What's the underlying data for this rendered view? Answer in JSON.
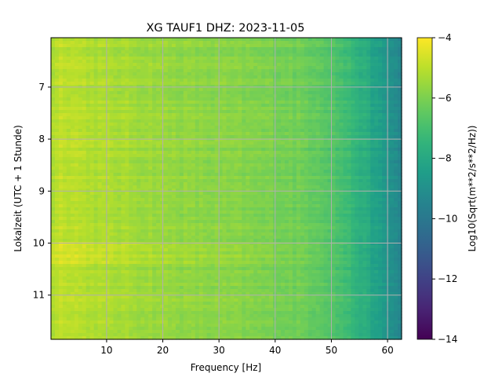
{
  "chart_data": {
    "type": "heatmap",
    "title": "XG TAUF1  DHZ: 2023-11-05",
    "xlabel": "Frequency [Hz]",
    "ylabel": "Lokalzeit (UTC + 1 Stunde)",
    "xlim": [
      0.1,
      62.5
    ],
    "ylim": [
      11.85,
      6.05
    ],
    "x_ticks": [
      10,
      20,
      30,
      40,
      50,
      60
    ],
    "x_tick_labels": [
      "10",
      "20",
      "30",
      "40",
      "50",
      "60"
    ],
    "y_ticks": [
      7,
      8,
      9,
      10,
      11
    ],
    "y_tick_labels": [
      "7",
      "8",
      "9",
      "10",
      "11"
    ],
    "grid": true,
    "colormap": "viridis",
    "colorbar": {
      "label": "Log10(Sqrt(m**2/s**2/Hz))",
      "range": [
        -14,
        -4
      ],
      "ticks": [
        -4,
        -6,
        -8,
        -10,
        -12,
        -14
      ],
      "tick_labels": [
        "−4",
        "−6",
        "−8",
        "−10",
        "−12",
        "−14"
      ]
    },
    "frequency_profile": {
      "x": [
        0,
        2,
        4,
        8,
        15,
        25,
        35,
        42,
        48,
        52,
        56,
        59,
        62.5
      ],
      "values": [
        -5.2,
        -4.9,
        -5.0,
        -5.2,
        -5.4,
        -5.7,
        -5.9,
        -6.1,
        -6.4,
        -7.0,
        -7.8,
        -8.6,
        -9.4
      ]
    },
    "bright_time_band": [
      9.98,
      10.4
    ]
  }
}
